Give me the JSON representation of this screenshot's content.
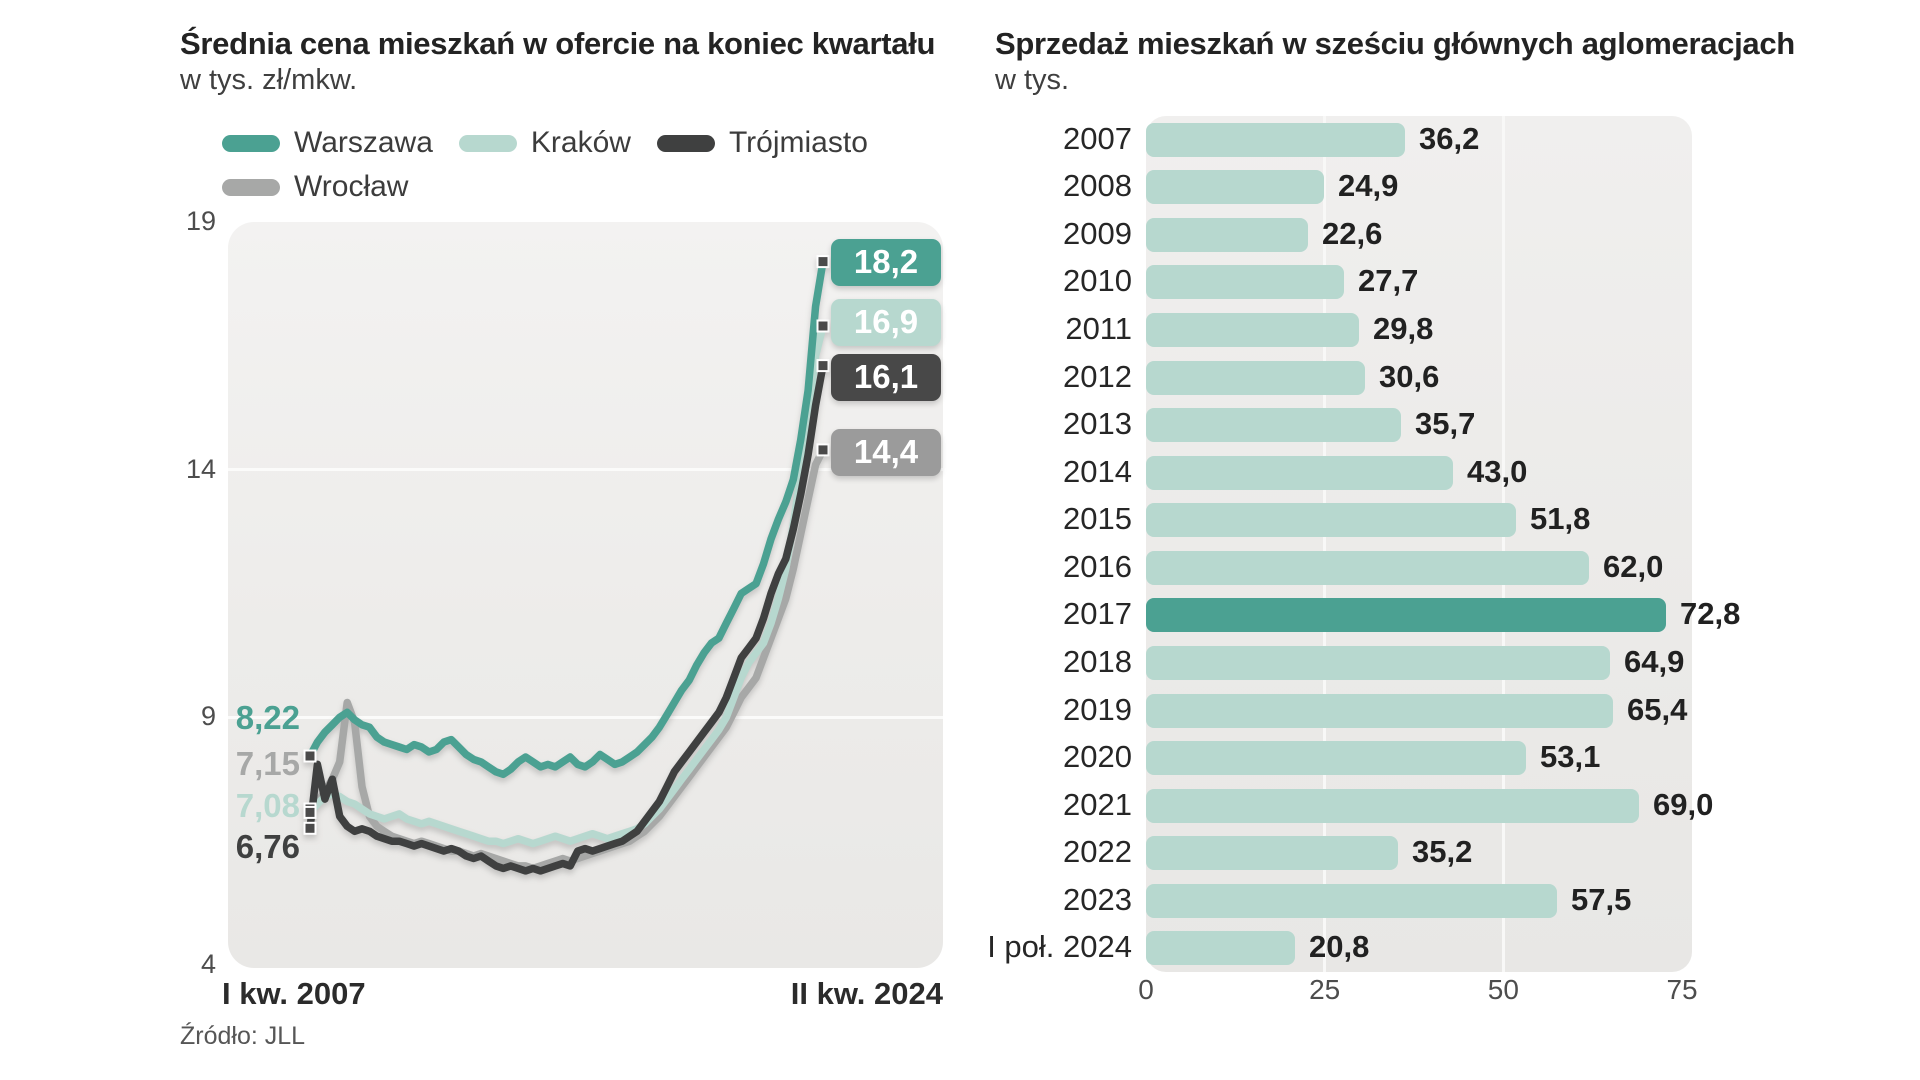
{
  "page": {
    "background": "#ffffff"
  },
  "colors": {
    "accent_teal": "#4ba192",
    "light_teal": "#b7d8cf",
    "dark_gray": "#3f4040",
    "mid_gray": "#a7a8a7",
    "grid_white": "#fbfbfa",
    "plot_background": "#edecea"
  },
  "chart_data": [
    {
      "type": "line",
      "title": "Średnia cena mieszkań w ofercie na koniec kwartału",
      "subtitle": "w tys. zł/mkw.",
      "source": "Źródło:  JLL",
      "x_axis": {
        "start_label": "I kw. 2007",
        "end_label": "II kw. 2024",
        "unit": "quarter",
        "range": [
          "2007 Q1",
          "2024 Q2"
        ]
      },
      "y_axis": {
        "min": 4,
        "max": 19,
        "ticks": [
          19,
          14,
          9,
          4
        ],
        "gridlines": [
          14,
          9
        ]
      },
      "legend_position": "top-left",
      "grid": "horizontal",
      "series": [
        {
          "name": "Warszawa",
          "color": "#4ba192",
          "badge_color": "#4ba192",
          "start_label": "8,22",
          "end_label": "18,2",
          "start_value": 8.22,
          "end_value": 18.2,
          "values": [
            8.22,
            8.5,
            8.7,
            8.85,
            9.0,
            9.1,
            8.95,
            8.85,
            8.8,
            8.6,
            8.5,
            8.45,
            8.4,
            8.35,
            8.45,
            8.4,
            8.3,
            8.35,
            8.5,
            8.55,
            8.4,
            8.25,
            8.15,
            8.1,
            8.0,
            7.9,
            7.85,
            7.95,
            8.1,
            8.2,
            8.1,
            8.0,
            8.05,
            8.0,
            8.1,
            8.2,
            8.05,
            8.0,
            8.1,
            8.25,
            8.15,
            8.05,
            8.1,
            8.2,
            8.3,
            8.45,
            8.6,
            8.8,
            9.05,
            9.3,
            9.55,
            9.75,
            10.05,
            10.3,
            10.5,
            10.6,
            10.9,
            11.2,
            11.5,
            11.6,
            11.7,
            12.1,
            12.6,
            13.0,
            13.35,
            13.8,
            14.6,
            15.6,
            17.3,
            18.2
          ]
        },
        {
          "name": "Kraków",
          "color": "#b7d8cf",
          "badge_color": "#b7d8cf",
          "start_label": "7,08",
          "end_label": "16,9",
          "start_value": 7.08,
          "end_value": 16.9,
          "values": [
            7.08,
            7.25,
            7.4,
            7.45,
            7.4,
            7.3,
            7.25,
            7.15,
            7.05,
            7.0,
            6.95,
            7.0,
            7.05,
            6.95,
            6.9,
            6.85,
            6.9,
            6.85,
            6.8,
            6.75,
            6.7,
            6.65,
            6.6,
            6.55,
            6.5,
            6.5,
            6.45,
            6.5,
            6.55,
            6.5,
            6.45,
            6.5,
            6.55,
            6.6,
            6.55,
            6.5,
            6.55,
            6.6,
            6.65,
            6.6,
            6.55,
            6.6,
            6.65,
            6.7,
            6.75,
            6.85,
            7.0,
            7.15,
            7.35,
            7.55,
            7.75,
            7.95,
            8.15,
            8.35,
            8.55,
            8.75,
            9.0,
            9.4,
            9.8,
            10.1,
            10.3,
            10.5,
            10.9,
            11.4,
            12.0,
            12.9,
            13.9,
            15.1,
            16.3,
            16.9
          ]
        },
        {
          "name": "Trójmiasto",
          "color": "#3f4040",
          "badge_color": "#484848",
          "start_label": "6,76",
          "end_label": "16,1",
          "start_value": 6.76,
          "end_value": 16.1,
          "values": [
            6.76,
            8.05,
            7.35,
            7.75,
            7.0,
            6.8,
            6.7,
            6.75,
            6.7,
            6.6,
            6.55,
            6.5,
            6.5,
            6.45,
            6.4,
            6.45,
            6.4,
            6.35,
            6.3,
            6.35,
            6.3,
            6.2,
            6.15,
            6.2,
            6.1,
            6.0,
            5.95,
            6.0,
            5.95,
            5.9,
            5.95,
            5.9,
            5.95,
            6.0,
            6.05,
            6.0,
            6.3,
            6.35,
            6.3,
            6.35,
            6.4,
            6.45,
            6.5,
            6.6,
            6.7,
            6.9,
            7.1,
            7.3,
            7.6,
            7.9,
            8.1,
            8.3,
            8.5,
            8.7,
            8.9,
            9.1,
            9.4,
            9.8,
            10.2,
            10.4,
            10.6,
            11.0,
            11.5,
            11.9,
            12.2,
            12.8,
            13.5,
            14.3,
            15.3,
            16.1
          ]
        },
        {
          "name": "Wrocław",
          "color": "#a7a8a7",
          "badge_color": "#9b9b9b",
          "start_label": "7,15",
          "end_label": "14,4",
          "start_value": 7.15,
          "end_value": 14.4,
          "values": [
            7.15,
            7.3,
            7.5,
            7.75,
            8.1,
            9.3,
            8.9,
            7.6,
            7.0,
            6.8,
            6.7,
            6.6,
            6.55,
            6.5,
            6.45,
            6.5,
            6.45,
            6.4,
            6.35,
            6.3,
            6.3,
            6.25,
            6.2,
            6.25,
            6.2,
            6.15,
            6.1,
            6.05,
            6.0,
            6.0,
            5.95,
            6.0,
            6.05,
            6.1,
            6.15,
            6.1,
            6.15,
            6.2,
            6.25,
            6.3,
            6.35,
            6.4,
            6.45,
            6.5,
            6.6,
            6.7,
            6.85,
            7.0,
            7.2,
            7.4,
            7.6,
            7.8,
            8.0,
            8.2,
            8.4,
            8.6,
            8.8,
            9.1,
            9.4,
            9.6,
            9.8,
            10.2,
            10.6,
            11.0,
            11.4,
            12.0,
            12.7,
            13.4,
            14.1,
            14.4
          ]
        }
      ]
    },
    {
      "type": "bar",
      "orientation": "horizontal",
      "title": "Sprzedaż mieszkań w sześciu głównych aglomeracjach",
      "subtitle": "w tys.",
      "categories": [
        "2007",
        "2008",
        "2009",
        "2010",
        "2011",
        "2012",
        "2013",
        "2014",
        "2015",
        "2016",
        "2017",
        "2018",
        "2019",
        "2020",
        "2021",
        "2022",
        "2023",
        "I poł. 2024"
      ],
      "values": [
        36.2,
        24.9,
        22.6,
        27.7,
        29.8,
        30.6,
        35.7,
        43.0,
        51.8,
        62.0,
        72.8,
        64.9,
        65.4,
        53.1,
        69.0,
        35.2,
        57.5,
        20.8
      ],
      "value_labels": [
        "36,2",
        "24,9",
        "22,6",
        "27,7",
        "29,8",
        "30,6",
        "35,7",
        "43,0",
        "51,8",
        "62,0",
        "72,8",
        "64,9",
        "65,4",
        "53,1",
        "69,0",
        "35,2",
        "57,5",
        "20,8"
      ],
      "highlight_category": "2017",
      "bar_color": "#b7d8cf",
      "highlight_color": "#4ba192",
      "x_axis": {
        "min": 0,
        "max": 75,
        "ticks": [
          0,
          25,
          50,
          75
        ]
      },
      "grid": "vertical"
    }
  ]
}
